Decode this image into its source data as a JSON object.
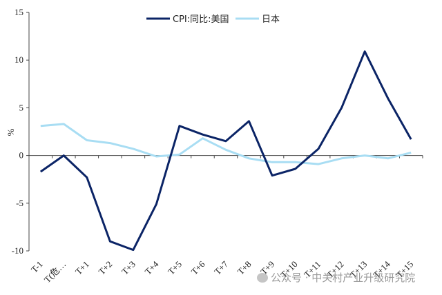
{
  "chart_data": {
    "type": "line",
    "title": "",
    "xlabel": "",
    "ylabel": "%",
    "ylim": [
      -10,
      15
    ],
    "yticks": [
      15,
      10,
      5,
      0,
      -5,
      -10
    ],
    "categories": [
      "T-1",
      "T(危…",
      "T+1",
      "T+2",
      "T+3",
      "T+4",
      "T+5",
      "T+6",
      "T+7",
      "T+8",
      "T+9",
      "T+10",
      "T+11",
      "T+12",
      "T+13",
      "T+14",
      "T+15"
    ],
    "series": [
      {
        "name": "CPI:同比:美国",
        "color": "#0b2466",
        "values": [
          -1.7,
          0.0,
          -2.3,
          -9.0,
          -9.9,
          -5.1,
          3.1,
          2.2,
          1.5,
          3.6,
          -2.1,
          -1.4,
          0.7,
          5.0,
          10.9,
          6.0,
          1.7
        ]
      },
      {
        "name": "日本",
        "color": "#a8ddf3",
        "values": [
          3.1,
          3.3,
          1.6,
          1.3,
          0.7,
          -0.1,
          0.1,
          1.8,
          0.6,
          -0.3,
          -0.7,
          -0.7,
          -0.9,
          -0.3,
          0.0,
          -0.3,
          0.3
        ]
      }
    ],
    "legend": "top",
    "grid": false
  },
  "watermark": "公众号 · 中关村产业升级研究院"
}
